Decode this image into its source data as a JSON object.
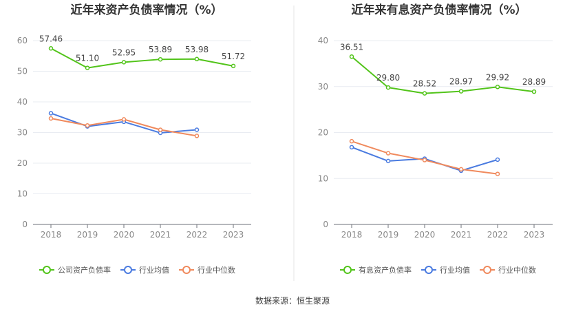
{
  "source": "数据来源：恒生聚源",
  "chart_data": [
    {
      "type": "line",
      "title": "近年来资产负债率情况（%）",
      "categories": [
        "2018",
        "2019",
        "2020",
        "2021",
        "2022",
        "2023"
      ],
      "ylim": [
        0,
        60
      ],
      "yticks": [
        0,
        10,
        20,
        30,
        40,
        50,
        60
      ],
      "grid": true,
      "legend": "bottom",
      "series": [
        {
          "name": "公司资产负债率",
          "color": "#52c41a",
          "labels": true,
          "values": [
            57.46,
            51.1,
            52.95,
            53.89,
            53.98,
            51.72
          ]
        },
        {
          "name": "行业均值",
          "color": "#4a7be0",
          "labels": false,
          "values": [
            36.3,
            32.0,
            33.5,
            29.9,
            30.9,
            null
          ]
        },
        {
          "name": "行业中位数",
          "color": "#f08a5d",
          "labels": false,
          "values": [
            34.6,
            32.3,
            34.3,
            30.9,
            28.9,
            null
          ]
        }
      ]
    },
    {
      "type": "line",
      "title": "近年来有息资产负债率情况（%）",
      "categories": [
        "2018",
        "2019",
        "2020",
        "2021",
        "2022",
        "2023"
      ],
      "ylim": [
        0,
        40
      ],
      "yticks": [
        0,
        10,
        20,
        30,
        40
      ],
      "grid": true,
      "legend": "bottom",
      "series": [
        {
          "name": "有息资产负债率",
          "color": "#52c41a",
          "labels": true,
          "values": [
            36.51,
            29.8,
            28.52,
            28.97,
            29.92,
            28.89
          ]
        },
        {
          "name": "行业均值",
          "color": "#4a7be0",
          "labels": false,
          "values": [
            16.8,
            13.8,
            14.3,
            11.7,
            14.1,
            null
          ]
        },
        {
          "name": "行业中位数",
          "color": "#f08a5d",
          "labels": false,
          "values": [
            18.1,
            15.5,
            14.0,
            12.0,
            11.0,
            null
          ]
        }
      ]
    }
  ]
}
